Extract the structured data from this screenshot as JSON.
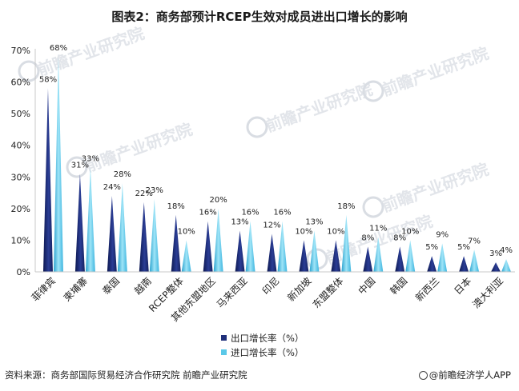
{
  "title": "图表2：商务部预计RCEP生效对成员进出口增长的影响",
  "source": "资料来源：商务部国际贸易经济合作研究院 前瞻产业研究院",
  "brand": "@前瞻经济学人APP",
  "watermark": "前瞻产业研究院",
  "colors": {
    "export": "#1f2f7a",
    "import": "#5ac8e8"
  },
  "chart_data": {
    "type": "bar",
    "title": "图表2：商务部预计RCEP生效对成员进出口增长的影响",
    "ylim": [
      0,
      70
    ],
    "yticks": [
      "0%",
      "10%",
      "20%",
      "30%",
      "40%",
      "50%",
      "60%",
      "70%"
    ],
    "categories": [
      "菲律宾",
      "柬埔寨",
      "泰国",
      "越南",
      "RCEP整体",
      "其他东盟地区",
      "马来西亚",
      "印尼",
      "新加坡",
      "东盟整体",
      "中国",
      "韩国",
      "新西兰",
      "日本",
      "澳大利亚"
    ],
    "series": [
      {
        "name": "出口增长率（%）",
        "values": [
          58,
          31,
          24,
          22,
          18,
          16,
          13,
          12,
          10,
          10,
          8,
          8,
          5,
          5,
          3
        ],
        "labels": [
          "58%",
          "31%",
          "24%",
          "22%",
          "18%",
          "16%",
          "13%",
          "12%",
          "10%",
          "10%",
          "8%",
          "8%",
          "5%",
          "5%",
          "3%"
        ]
      },
      {
        "name": "进口增长率（%）",
        "values": [
          68,
          33,
          28,
          23,
          10,
          20,
          16,
          16,
          13,
          18,
          11,
          10,
          9,
          7,
          4
        ],
        "labels": [
          "68%",
          "33%",
          "28%",
          "23%",
          "10%",
          "20%",
          "16%",
          "16%",
          "13%",
          "18%",
          "11%",
          "10%",
          "9%",
          "7%",
          "4%"
        ]
      }
    ],
    "grid": false,
    "legend_position": "bottom"
  }
}
